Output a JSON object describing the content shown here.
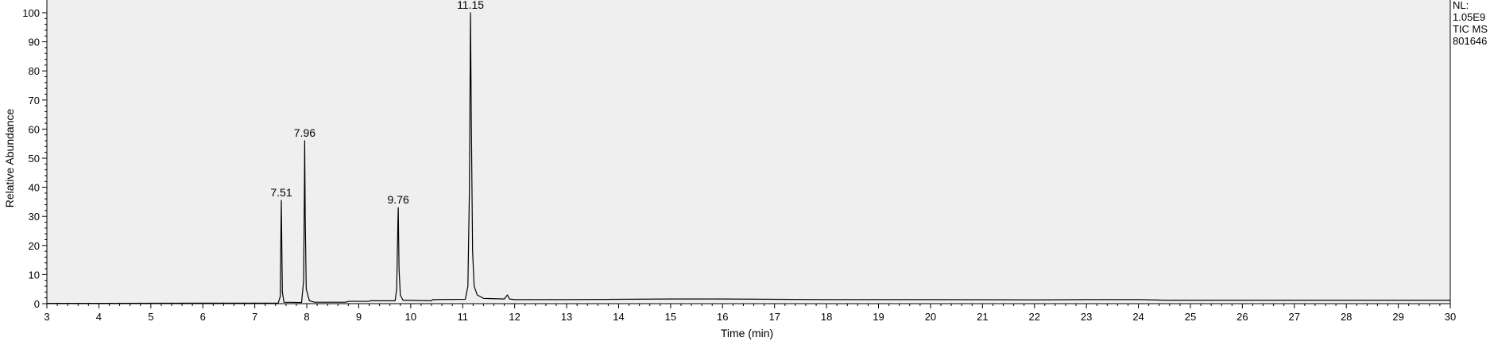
{
  "chart_data": {
    "type": "line",
    "xlabel": "Time (min)",
    "ylabel": "Relative Abundance",
    "xlim": [
      3,
      30
    ],
    "ylim": [
      0,
      100
    ],
    "x_ticks": [
      3,
      4,
      5,
      6,
      7,
      8,
      9,
      10,
      11,
      12,
      13,
      14,
      15,
      16,
      17,
      18,
      19,
      20,
      21,
      22,
      23,
      24,
      25,
      26,
      27,
      28,
      29,
      30
    ],
    "y_ticks": [
      0,
      10,
      20,
      30,
      40,
      50,
      60,
      70,
      80,
      90,
      100
    ],
    "grid": false,
    "background": "#efefef",
    "line_color": "#000000",
    "annotation_lines": [
      "NL:",
      "1.05E9",
      "TIC  MS",
      "801646"
    ],
    "peak_labels": [
      {
        "text": "7.51",
        "x": 7.51,
        "y": 35.5
      },
      {
        "text": "7.96",
        "x": 7.96,
        "y": 56
      },
      {
        "text": "9.76",
        "x": 9.76,
        "y": 33
      },
      {
        "text": "11.15",
        "x": 11.15,
        "y": 100
      }
    ],
    "series": [
      {
        "points": [
          [
            3.0,
            0.1
          ],
          [
            7.45,
            0.2
          ],
          [
            7.49,
            2.5
          ],
          [
            7.51,
            35.5
          ],
          [
            7.53,
            4.0
          ],
          [
            7.56,
            0.5
          ],
          [
            7.9,
            0.4
          ],
          [
            7.94,
            8.0
          ],
          [
            7.955,
            40
          ],
          [
            7.96,
            56
          ],
          [
            7.97,
            30
          ],
          [
            7.99,
            5.0
          ],
          [
            8.05,
            1.0
          ],
          [
            8.15,
            0.5
          ],
          [
            8.75,
            0.5
          ],
          [
            8.8,
            0.8
          ],
          [
            9.2,
            0.8
          ],
          [
            9.22,
            1.0
          ],
          [
            9.7,
            1.0
          ],
          [
            9.73,
            5.0
          ],
          [
            9.755,
            30
          ],
          [
            9.76,
            33
          ],
          [
            9.775,
            12
          ],
          [
            9.8,
            3.0
          ],
          [
            9.85,
            1.2
          ],
          [
            10.4,
            1.0
          ],
          [
            10.42,
            1.4
          ],
          [
            11.05,
            1.5
          ],
          [
            11.1,
            6.0
          ],
          [
            11.13,
            40
          ],
          [
            11.15,
            100
          ],
          [
            11.165,
            65
          ],
          [
            11.19,
            18
          ],
          [
            11.22,
            6.0
          ],
          [
            11.28,
            3.0
          ],
          [
            11.4,
            1.8
          ],
          [
            11.8,
            1.6
          ],
          [
            11.86,
            3.0
          ],
          [
            11.9,
            1.6
          ],
          [
            12.0,
            1.4
          ],
          [
            13.0,
            1.4
          ],
          [
            14.0,
            1.5
          ],
          [
            15.0,
            1.6
          ],
          [
            16.0,
            1.6
          ],
          [
            17.0,
            1.5
          ],
          [
            18.0,
            1.4
          ],
          [
            20.0,
            1.4
          ],
          [
            22.0,
            1.3
          ],
          [
            23.0,
            1.4
          ],
          [
            24.0,
            1.4
          ],
          [
            24.5,
            1.2
          ],
          [
            26.0,
            1.2
          ],
          [
            28.0,
            1.2
          ],
          [
            30.0,
            1.2
          ]
        ]
      }
    ]
  }
}
